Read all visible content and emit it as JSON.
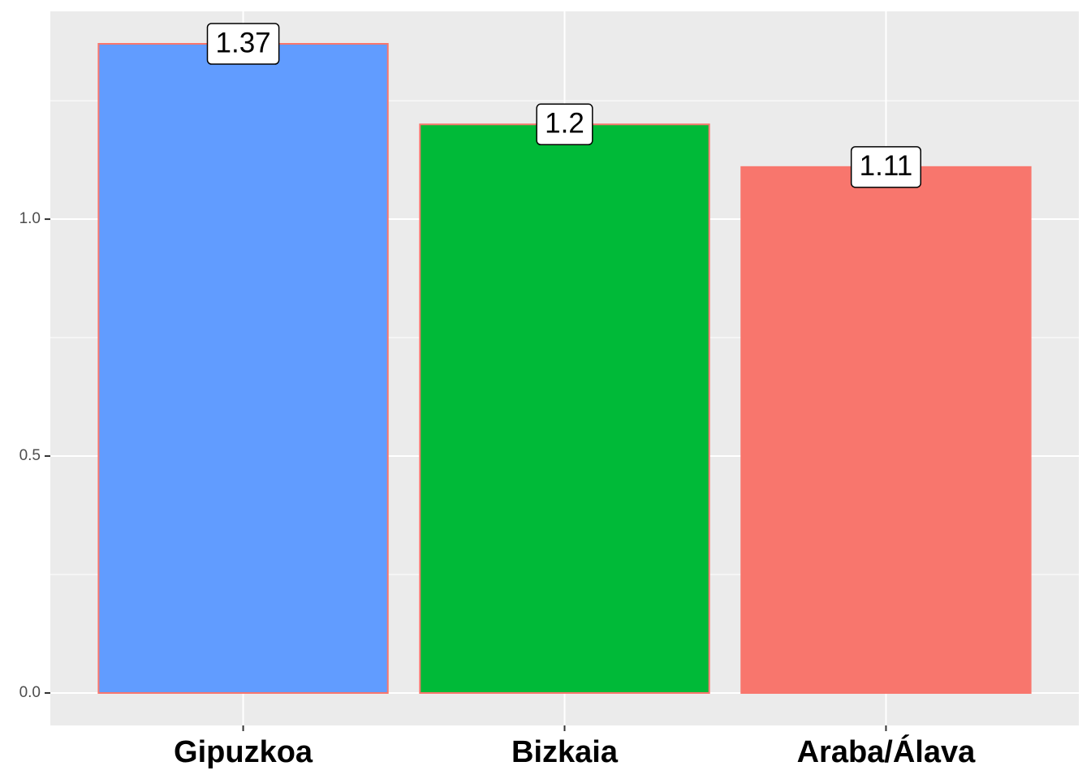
{
  "chart_data": {
    "type": "bar",
    "categories": [
      "Gipuzkoa",
      "Bizkaia",
      "Araba/Álava"
    ],
    "values": [
      1.37,
      1.2,
      1.11
    ],
    "colors": [
      "#619CFF",
      "#00BA38",
      "#F8766D"
    ],
    "outline_color": "#F8766D",
    "ylim": [
      -0.0685,
      1.4385
    ],
    "yticks": [
      {
        "value": 0,
        "label": "0.0"
      },
      {
        "value": 0.5,
        "label": "0.5"
      },
      {
        "value": 1,
        "label": "1.0"
      }
    ],
    "minor_yticks": [
      0.25,
      0.75,
      1.25
    ],
    "grid": true
  }
}
